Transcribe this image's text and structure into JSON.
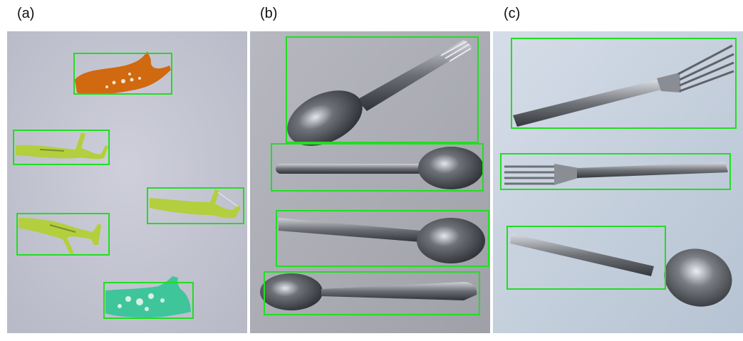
{
  "panels": [
    {
      "label": "(a)",
      "detections": 5,
      "background": "#c7c8d4"
    },
    {
      "label": "(b)",
      "detections": 4,
      "background": "#a9aab2"
    },
    {
      "label": "(c)",
      "detections": 3,
      "background": "#c9d4e0"
    }
  ],
  "colors": {
    "box": "#22dd22",
    "pick_orange": "#d0690f",
    "pick_lime": "#b3cf3d",
    "pick_teal": "#3fc59a",
    "metal_dark": "#3d4045",
    "metal_light": "#d8dbe0"
  }
}
